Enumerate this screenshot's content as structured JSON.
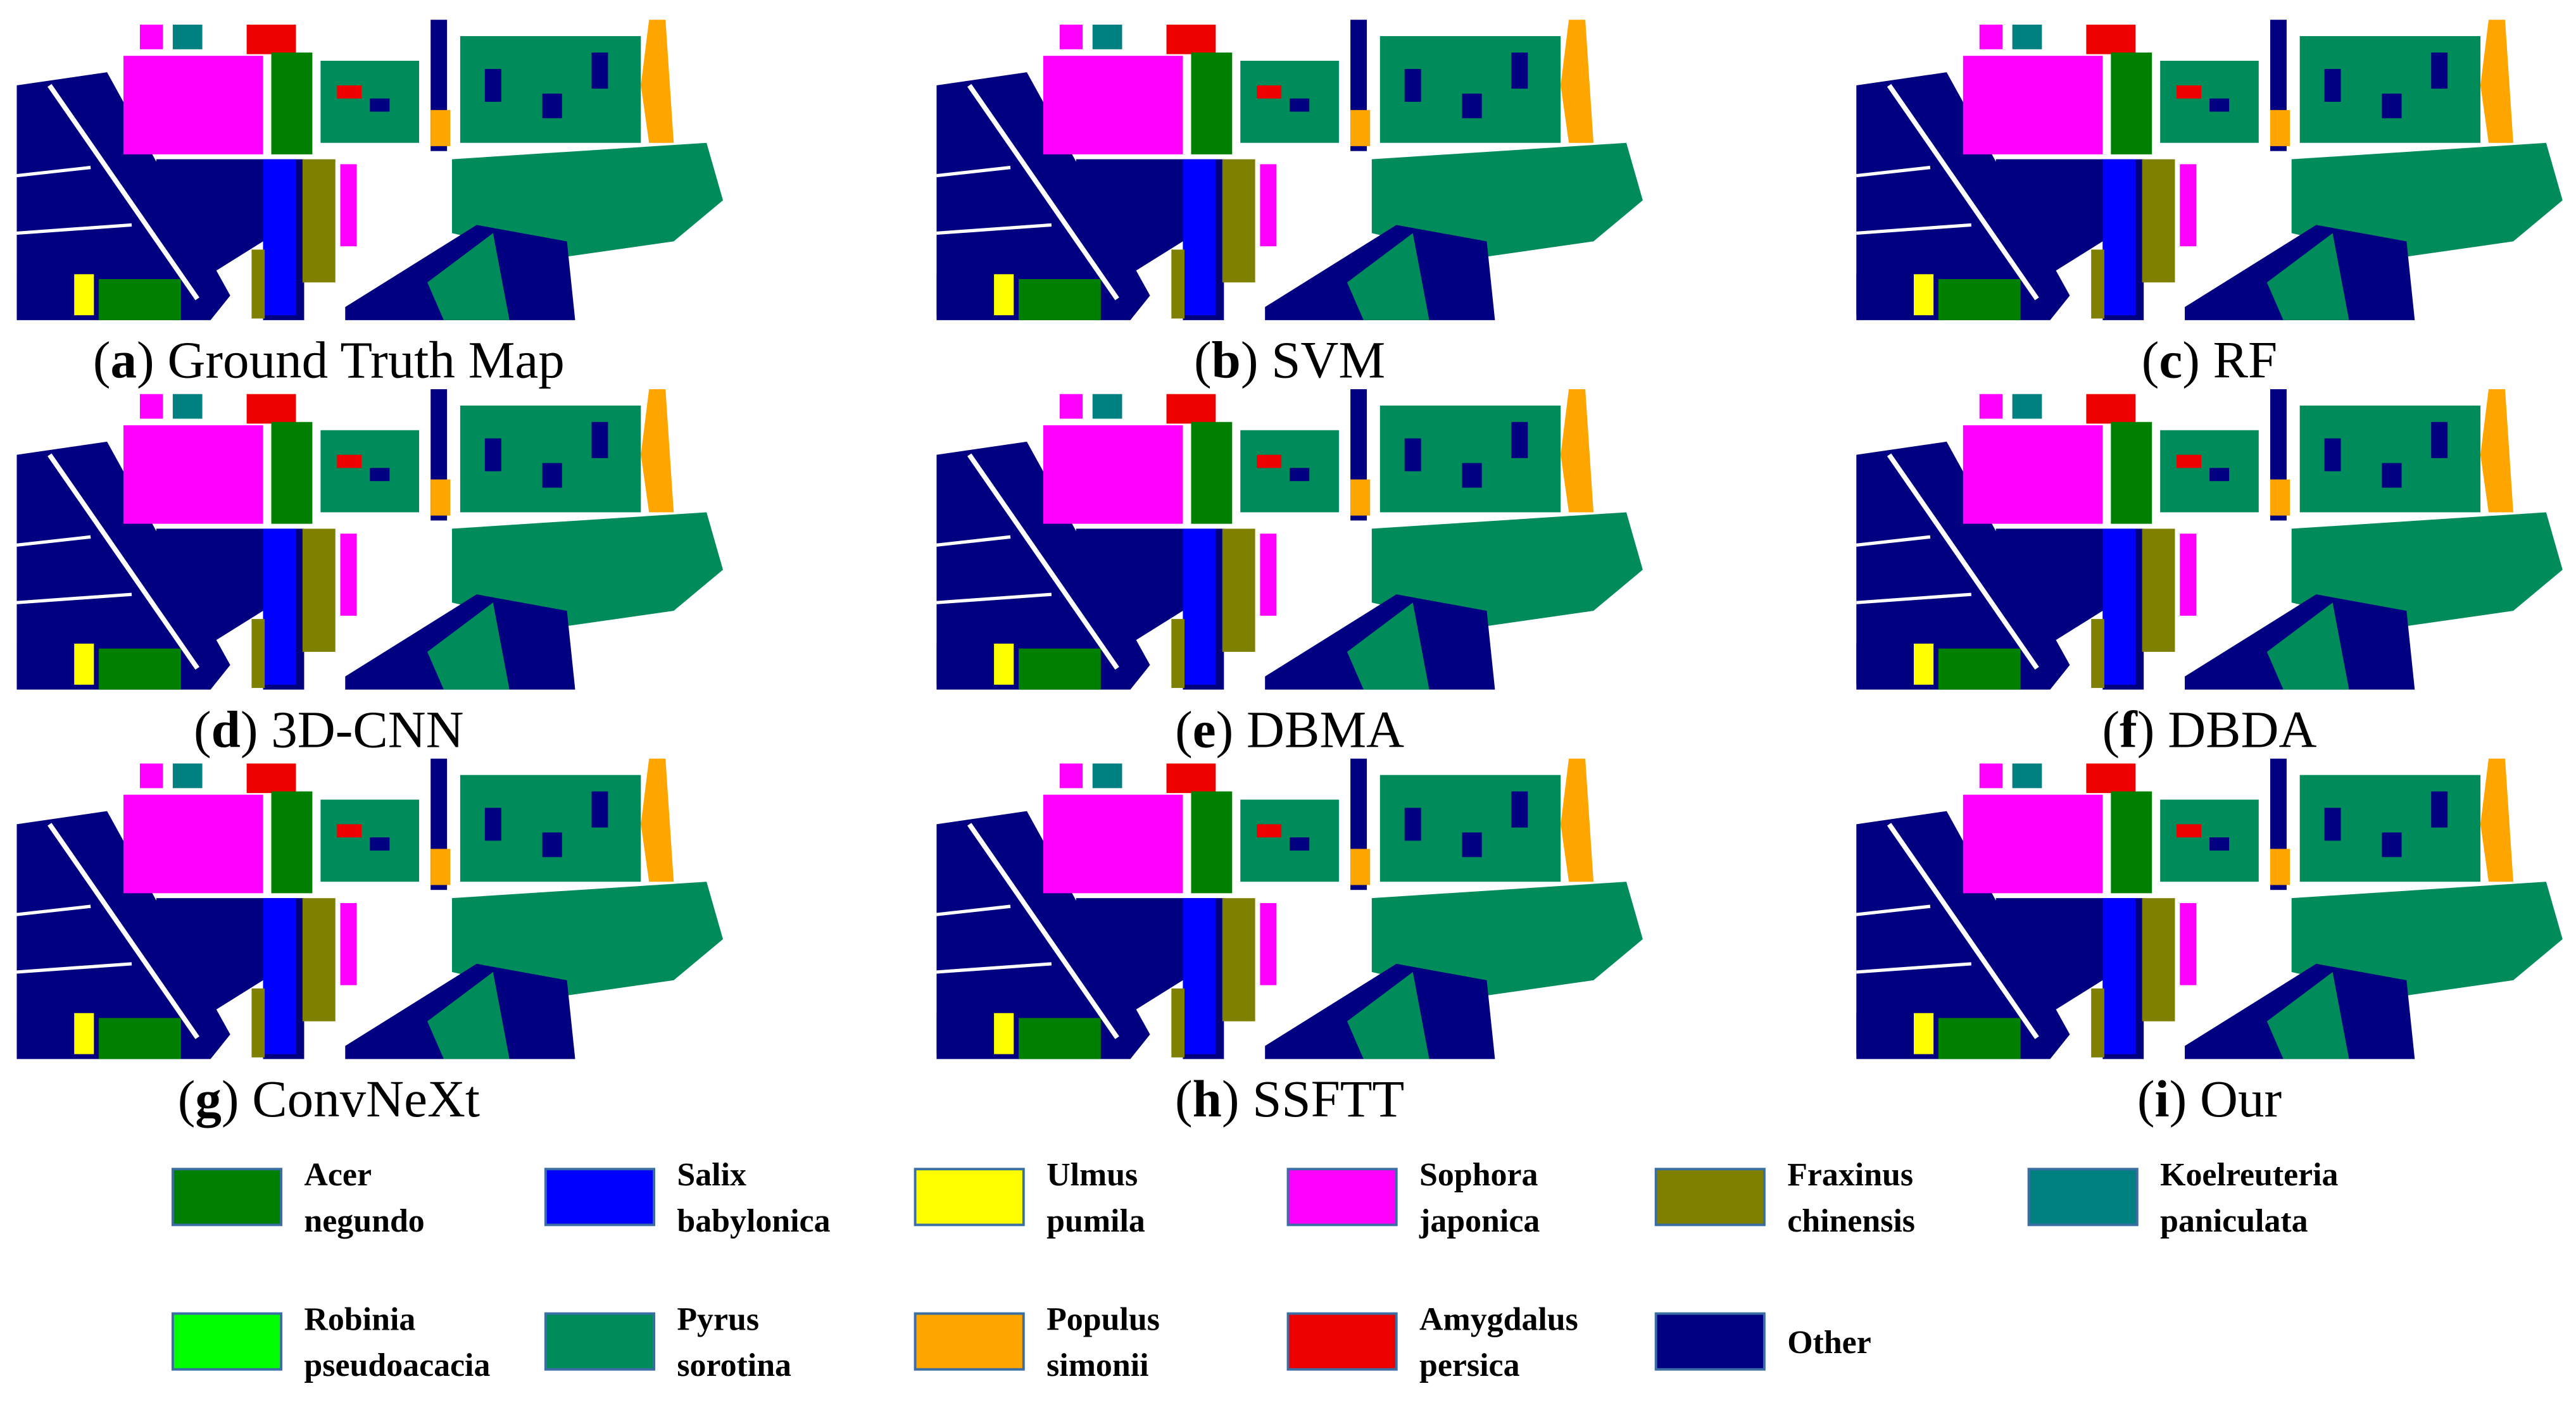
{
  "panels": [
    {
      "caption_parts": [
        "(",
        "a",
        ")",
        "Ground Truth Map"
      ]
    },
    {
      "caption_parts": [
        "(",
        "b",
        ")",
        "SVM"
      ]
    },
    {
      "caption_parts": [
        "(",
        "c",
        ")",
        "RF"
      ]
    },
    {
      "caption_parts": [
        "(",
        "d",
        ")",
        "3D-CNN"
      ]
    },
    {
      "caption_parts": [
        "(",
        "e",
        ")",
        "DBMA"
      ]
    },
    {
      "caption_parts": [
        "(",
        "f",
        ")",
        "DBDA"
      ]
    },
    {
      "caption_parts": [
        "(",
        "g",
        ")",
        "ConvNeXt"
      ]
    },
    {
      "caption_parts": [
        "(",
        "h",
        ")",
        "SSFTT"
      ]
    },
    {
      "caption_parts": [
        "(",
        "i",
        ")",
        "Our"
      ]
    }
  ],
  "legend": [
    {
      "name": [
        "Acer",
        "negundo"
      ],
      "color": "#008000"
    },
    {
      "name": [
        "Salix",
        "babylonica"
      ],
      "color": "#0000ff"
    },
    {
      "name": [
        "Ulmus",
        "pumila"
      ],
      "color": "#ffff00"
    },
    {
      "name": [
        "Sophora",
        "japonica"
      ],
      "color": "#ff00ff"
    },
    {
      "name": [
        "Fraxinus",
        "chinensis"
      ],
      "color": "#808000"
    },
    {
      "name": [
        "Koelreuteria",
        "paniculata"
      ],
      "color": "#008080"
    },
    {
      "name": [
        "Robinia",
        "pseudoacacia"
      ],
      "color": "#00ff00"
    },
    {
      "name": [
        "Pyrus",
        "sorotina"
      ],
      "color": "#008b5a"
    },
    {
      "name": [
        "Populus",
        "simonii"
      ],
      "color": "#ffa500"
    },
    {
      "name": [
        "Amygdalus",
        "persica"
      ],
      "color": "#ee0000"
    },
    {
      "name": [
        "Other"
      ],
      "color": "#000080"
    }
  ]
}
